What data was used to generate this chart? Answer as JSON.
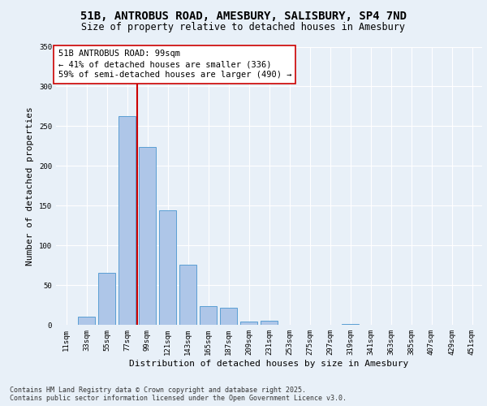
{
  "title_line1": "51B, ANTROBUS ROAD, AMESBURY, SALISBURY, SP4 7ND",
  "title_line2": "Size of property relative to detached houses in Amesbury",
  "xlabel": "Distribution of detached houses by size in Amesbury",
  "ylabel": "Number of detached properties",
  "categories": [
    "11sqm",
    "33sqm",
    "55sqm",
    "77sqm",
    "99sqm",
    "121sqm",
    "143sqm",
    "165sqm",
    "187sqm",
    "209sqm",
    "231sqm",
    "253sqm",
    "275sqm",
    "297sqm",
    "319sqm",
    "341sqm",
    "363sqm",
    "385sqm",
    "407sqm",
    "429sqm",
    "451sqm"
  ],
  "values": [
    0,
    10,
    65,
    263,
    224,
    144,
    76,
    24,
    21,
    4,
    5,
    0,
    0,
    0,
    1,
    0,
    0,
    0,
    0,
    0,
    0
  ],
  "bar_color": "#aec6e8",
  "bar_edge_color": "#5a9fd4",
  "bar_linewidth": 0.7,
  "vline_x": 3.5,
  "vline_color": "#cc0000",
  "vline_linewidth": 1.5,
  "annotation_text": "51B ANTROBUS ROAD: 99sqm\n← 41% of detached houses are smaller (336)\n59% of semi-detached houses are larger (490) →",
  "annotation_box_color": "#ffffff",
  "annotation_box_edge": "#cc0000",
  "ylim": [
    0,
    350
  ],
  "yticks": [
    0,
    50,
    100,
    150,
    200,
    250,
    300,
    350
  ],
  "bg_color": "#e8f0f8",
  "axes_bg_color": "#e8f0f8",
  "grid_color": "#ffffff",
  "footer_line1": "Contains HM Land Registry data © Crown copyright and database right 2025.",
  "footer_line2": "Contains public sector information licensed under the Open Government Licence v3.0.",
  "title_fontsize": 10,
  "subtitle_fontsize": 8.5,
  "tick_fontsize": 6.5,
  "ylabel_fontsize": 8,
  "xlabel_fontsize": 8,
  "annotation_fontsize": 7.5,
  "footer_fontsize": 6
}
